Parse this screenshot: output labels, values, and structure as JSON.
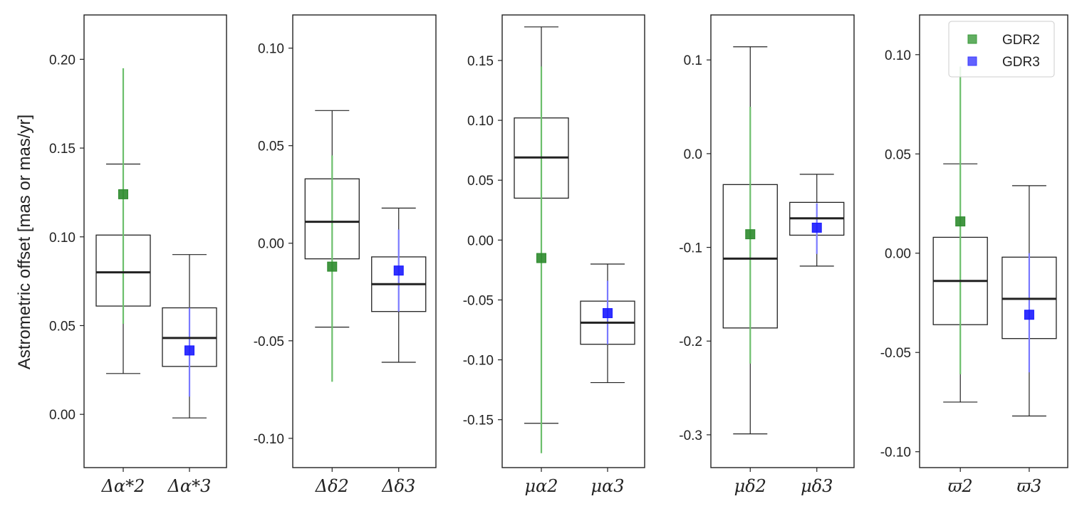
{
  "chart_data": {
    "type": "box",
    "ylabel": "Astrometric offset [mas or mas/yr]",
    "legend": {
      "placement": "top-right",
      "entries": [
        {
          "name": "GDR2",
          "color": "#3a9a3a"
        },
        {
          "name": "GDR3",
          "color": "#3a3aff"
        }
      ]
    },
    "colors": {
      "box": "#222222",
      "median": "#222222",
      "gdr2": "#2e8b2e",
      "gdr3": "#1a1aff",
      "gdr2_bar": "#6cbf6c",
      "gdr3_bar": "#7a7aff"
    },
    "panels": [
      {
        "ylim": [
          -0.03,
          0.225
        ],
        "ticks": [
          0.0,
          0.05,
          0.1,
          0.15,
          0.2
        ],
        "tick_labels": [
          "0.00",
          "0.05",
          "0.10",
          "0.15",
          "0.20"
        ],
        "categories": [
          "Δα*2",
          "Δα*3"
        ],
        "boxes": [
          {
            "whislo": 0.023,
            "q1": 0.061,
            "med": 0.08,
            "q3": 0.101,
            "whishi": 0.141
          },
          {
            "whislo": -0.002,
            "q1": 0.027,
            "med": 0.043,
            "q3": 0.06,
            "whishi": 0.09
          }
        ],
        "points": [
          {
            "series": "GDR2",
            "y": 0.124,
            "ylo": 0.051,
            "yhi": 0.195
          },
          {
            "series": "GDR3",
            "y": 0.036,
            "ylo": 0.01,
            "yhi": 0.06
          }
        ]
      },
      {
        "ylim": [
          -0.115,
          0.117
        ],
        "ticks": [
          -0.1,
          -0.05,
          0.0,
          0.05,
          0.1
        ],
        "tick_labels": [
          "-0.10",
          "-0.05",
          "0.00",
          "0.05",
          "0.10"
        ],
        "categories": [
          "Δδ2",
          "Δδ3"
        ],
        "boxes": [
          {
            "whislo": -0.043,
            "q1": -0.008,
            "med": 0.011,
            "q3": 0.033,
            "whishi": 0.068
          },
          {
            "whislo": -0.061,
            "q1": -0.035,
            "med": -0.021,
            "q3": -0.007,
            "whishi": 0.018
          }
        ],
        "points": [
          {
            "series": "GDR2",
            "y": -0.012,
            "ylo": -0.071,
            "yhi": 0.045
          },
          {
            "series": "GDR3",
            "y": -0.014,
            "ylo": -0.035,
            "yhi": 0.007
          }
        ]
      },
      {
        "ylim": [
          -0.19,
          0.188
        ],
        "ticks": [
          -0.15,
          -0.1,
          -0.05,
          0.0,
          0.05,
          0.1,
          0.15
        ],
        "tick_labels": [
          "-0.15",
          "-0.10",
          "-0.05",
          "0.00",
          "0.05",
          "0.10",
          "0.15"
        ],
        "categories": [
          "μα2",
          "μα3"
        ],
        "boxes": [
          {
            "whislo": -0.153,
            "q1": 0.035,
            "med": 0.069,
            "q3": 0.102,
            "whishi": 0.178
          },
          {
            "whislo": -0.119,
            "q1": -0.087,
            "med": -0.069,
            "q3": -0.051,
            "whishi": -0.02
          }
        ],
        "points": [
          {
            "series": "GDR2",
            "y": -0.015,
            "ylo": -0.178,
            "yhi": 0.145
          },
          {
            "series": "GDR3",
            "y": -0.061,
            "ylo": -0.087,
            "yhi": -0.034
          }
        ]
      },
      {
        "ylim": [
          -0.335,
          0.148
        ],
        "ticks": [
          -0.3,
          -0.2,
          -0.1,
          0.0,
          0.1
        ],
        "tick_labels": [
          "-0.3",
          "-0.2",
          "-0.1",
          "0.0",
          "0.1"
        ],
        "categories": [
          "μδ2",
          "μδ3"
        ],
        "boxes": [
          {
            "whislo": -0.299,
            "q1": -0.186,
            "med": -0.112,
            "q3": -0.033,
            "whishi": 0.114
          },
          {
            "whislo": -0.12,
            "q1": -0.087,
            "med": -0.069,
            "q3": -0.052,
            "whishi": -0.022
          }
        ],
        "points": [
          {
            "series": "GDR2",
            "y": -0.086,
            "ylo": -0.224,
            "yhi": 0.05
          },
          {
            "series": "GDR3",
            "y": -0.079,
            "ylo": -0.107,
            "yhi": -0.053
          }
        ]
      },
      {
        "ylim": [
          -0.108,
          0.12
        ],
        "ticks": [
          -0.1,
          -0.05,
          0.0,
          0.05,
          0.1
        ],
        "tick_labels": [
          "-0.10",
          "-0.05",
          "0.00",
          "0.05",
          "0.10"
        ],
        "categories": [
          "ϖ2",
          "ϖ3"
        ],
        "boxes": [
          {
            "whislo": -0.075,
            "q1": -0.036,
            "med": -0.014,
            "q3": 0.008,
            "whishi": 0.045
          },
          {
            "whislo": -0.082,
            "q1": -0.043,
            "med": -0.023,
            "q3": -0.002,
            "whishi": 0.034
          }
        ],
        "points": [
          {
            "series": "GDR2",
            "y": 0.016,
            "ylo": -0.061,
            "yhi": 0.094
          },
          {
            "series": "GDR3",
            "y": -0.031,
            "ylo": -0.06,
            "yhi": 0.0
          }
        ]
      }
    ]
  }
}
